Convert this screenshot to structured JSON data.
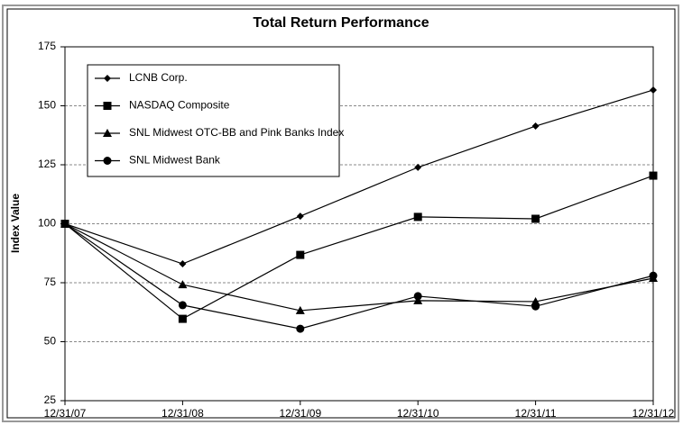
{
  "chart_data": {
    "type": "line",
    "title": "Total Return Performance",
    "y_label": "Index Value",
    "categories": [
      "12/31/07",
      "12/31/08",
      "12/31/09",
      "12/31/10",
      "12/31/11",
      "12/31/12"
    ],
    "series": [
      {
        "name": "LCNB Corp.",
        "color": "#000000",
        "marker": "diamond",
        "values": [
          100,
          83,
          103.2,
          123.9,
          141.4,
          156.7
        ]
      },
      {
        "name": "NASDAQ Composite",
        "color": "#000000",
        "marker": "square",
        "values": [
          100,
          59.7,
          86.8,
          102.9,
          102.1,
          120.4
        ]
      },
      {
        "name": "SNL Midwest OTC-BB and Pink Banks Index",
        "color": "#000000",
        "marker": "triangle",
        "values": [
          100,
          74.2,
          63.2,
          67.4,
          67,
          76.9
        ]
      },
      {
        "name": "SNL Midwest Bank",
        "color": "#000000",
        "marker": "circle",
        "values": [
          100,
          65.5,
          55.5,
          69.3,
          65,
          78
        ]
      }
    ],
    "ylim": [
      25,
      175
    ],
    "yticks": [
      25,
      50,
      75,
      100,
      125,
      150,
      175
    ],
    "grid": true,
    "legend": "top-left"
  }
}
